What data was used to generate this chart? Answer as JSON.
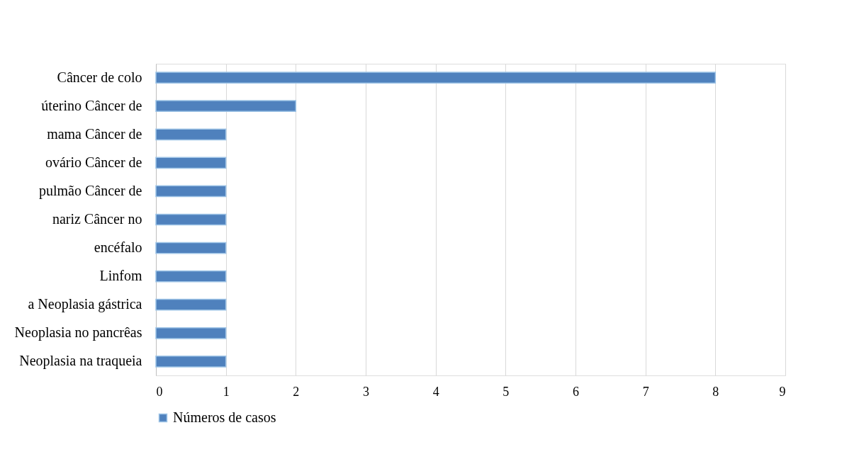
{
  "chart_data": {
    "type": "bar",
    "orientation": "horizontal",
    "categories": [
      "Câncer de colo",
      "úterino Câncer de",
      "mama Câncer de",
      "ovário Câncer de",
      "pulmão Câncer de",
      "nariz Câncer no",
      "encéfalo",
      "Linfom",
      "a Neoplasia gástrica",
      "Neoplasia no pancrêas",
      "Neoplasia na traqueia"
    ],
    "series": [
      {
        "name": "Números de casos",
        "color": "#4f81bd",
        "values": [
          8,
          2,
          1,
          1,
          1,
          1,
          1,
          1,
          1,
          1,
          1
        ]
      }
    ],
    "xlim": [
      0,
      9
    ],
    "xticks": [
      0,
      1,
      2,
      3,
      4,
      5,
      6,
      7,
      8,
      9
    ],
    "grid": "x",
    "legend": "bottom"
  }
}
